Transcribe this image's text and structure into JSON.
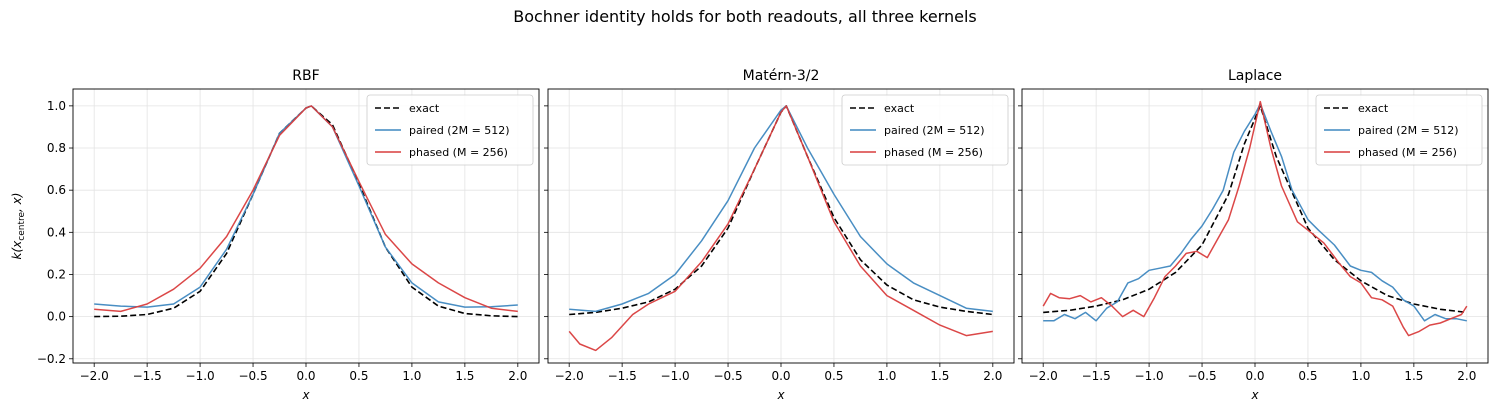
{
  "figure": {
    "title": "Bochner identity holds for both readouts, all three kernels",
    "shared_ylabel": "k(x_centre, x)",
    "colors": {
      "exact": "#000000",
      "paired": "#3f88c0",
      "phased": "#d93d3d"
    }
  },
  "chart_data": [
    {
      "type": "line",
      "title": "RBF",
      "xlabel": "x",
      "ylabel": "k(x_centre, x)",
      "xlim": [
        -2.2,
        2.2
      ],
      "ylim": [
        -0.22,
        1.08
      ],
      "xticks": [
        -2.0,
        -1.5,
        -1.0,
        -0.5,
        0.0,
        0.5,
        1.0,
        1.5,
        2.0
      ],
      "xtick_labels": [
        "−2.0",
        "−1.5",
        "−1.0",
        "−0.5",
        "0.0",
        "0.5",
        "1.0",
        "1.5",
        "2.0"
      ],
      "yticks": [
        -0.2,
        0.0,
        0.2,
        0.4,
        0.6,
        0.8,
        1.0
      ],
      "ytick_labels": [
        "−0.2",
        "0.0",
        "0.2",
        "0.4",
        "0.6",
        "0.8",
        "1.0"
      ],
      "grid": true,
      "legend": "top-right",
      "series": [
        {
          "name": "exact",
          "style": "dashed",
          "points": [
            [
              -2.0,
              0.0
            ],
            [
              -1.75,
              0.002
            ],
            [
              -1.5,
              0.01
            ],
            [
              -1.25,
              0.04
            ],
            [
              -1.0,
              0.12
            ],
            [
              -0.75,
              0.3
            ],
            [
              -0.5,
              0.58
            ],
            [
              -0.25,
              0.87
            ],
            [
              0.0,
              0.99
            ],
            [
              0.05,
              1.0
            ],
            [
              0.25,
              0.91
            ],
            [
              0.5,
              0.63
            ],
            [
              0.75,
              0.33
            ],
            [
              1.0,
              0.14
            ],
            [
              1.25,
              0.05
            ],
            [
              1.5,
              0.015
            ],
            [
              1.75,
              0.004
            ],
            [
              2.0,
              0.0
            ]
          ]
        },
        {
          "name": "paired (2M = 512)",
          "style": "solid",
          "points": [
            [
              -2.0,
              0.06
            ],
            [
              -1.75,
              0.05
            ],
            [
              -1.5,
              0.045
            ],
            [
              -1.25,
              0.06
            ],
            [
              -1.0,
              0.14
            ],
            [
              -0.75,
              0.32
            ],
            [
              -0.5,
              0.58
            ],
            [
              -0.25,
              0.87
            ],
            [
              0.0,
              0.99
            ],
            [
              0.05,
              1.0
            ],
            [
              0.25,
              0.9
            ],
            [
              0.5,
              0.62
            ],
            [
              0.75,
              0.33
            ],
            [
              1.0,
              0.16
            ],
            [
              1.25,
              0.07
            ],
            [
              1.5,
              0.045
            ],
            [
              1.75,
              0.047
            ],
            [
              2.0,
              0.055
            ]
          ]
        },
        {
          "name": "phased (M = 256)",
          "style": "solid",
          "points": [
            [
              -2.0,
              0.035
            ],
            [
              -1.75,
              0.025
            ],
            [
              -1.5,
              0.06
            ],
            [
              -1.25,
              0.13
            ],
            [
              -1.0,
              0.23
            ],
            [
              -0.75,
              0.38
            ],
            [
              -0.5,
              0.6
            ],
            [
              -0.25,
              0.86
            ],
            [
              0.0,
              0.99
            ],
            [
              0.05,
              1.0
            ],
            [
              0.25,
              0.9
            ],
            [
              0.5,
              0.64
            ],
            [
              0.75,
              0.39
            ],
            [
              1.0,
              0.25
            ],
            [
              1.25,
              0.16
            ],
            [
              1.5,
              0.09
            ],
            [
              1.75,
              0.04
            ],
            [
              2.0,
              0.025
            ]
          ]
        }
      ]
    },
    {
      "type": "line",
      "title": "Matérn-3/2",
      "xlabel": "x",
      "ylabel": "",
      "xlim": [
        -2.2,
        2.2
      ],
      "ylim": [
        -0.22,
        1.08
      ],
      "xticks": [
        -2.0,
        -1.5,
        -1.0,
        -0.5,
        0.0,
        0.5,
        1.0,
        1.5,
        2.0
      ],
      "xtick_labels": [
        "−2.0",
        "−1.5",
        "−1.0",
        "−0.5",
        "0.0",
        "0.5",
        "1.0",
        "1.5",
        "2.0"
      ],
      "grid": true,
      "legend": "top-right",
      "series": [
        {
          "name": "exact",
          "style": "dashed",
          "points": [
            [
              -2.0,
              0.01
            ],
            [
              -1.75,
              0.02
            ],
            [
              -1.5,
              0.04
            ],
            [
              -1.25,
              0.07
            ],
            [
              -1.0,
              0.13
            ],
            [
              -0.75,
              0.24
            ],
            [
              -0.5,
              0.42
            ],
            [
              -0.25,
              0.7
            ],
            [
              0.0,
              0.97
            ],
            [
              0.05,
              1.0
            ],
            [
              0.25,
              0.76
            ],
            [
              0.5,
              0.47
            ],
            [
              0.75,
              0.27
            ],
            [
              1.0,
              0.15
            ],
            [
              1.25,
              0.08
            ],
            [
              1.5,
              0.045
            ],
            [
              1.75,
              0.025
            ],
            [
              2.0,
              0.01
            ]
          ]
        },
        {
          "name": "paired (2M = 512)",
          "style": "solid",
          "points": [
            [
              -2.0,
              0.035
            ],
            [
              -1.75,
              0.025
            ],
            [
              -1.5,
              0.06
            ],
            [
              -1.25,
              0.11
            ],
            [
              -1.0,
              0.2
            ],
            [
              -0.75,
              0.36
            ],
            [
              -0.5,
              0.55
            ],
            [
              -0.25,
              0.8
            ],
            [
              0.0,
              0.98
            ],
            [
              0.05,
              1.0
            ],
            [
              0.25,
              0.8
            ],
            [
              0.5,
              0.58
            ],
            [
              0.75,
              0.38
            ],
            [
              1.0,
              0.25
            ],
            [
              1.25,
              0.16
            ],
            [
              1.5,
              0.1
            ],
            [
              1.75,
              0.04
            ],
            [
              2.0,
              0.025
            ]
          ]
        },
        {
          "name": "phased (M = 256)",
          "style": "solid",
          "points": [
            [
              -2.0,
              -0.07
            ],
            [
              -1.9,
              -0.13
            ],
            [
              -1.75,
              -0.16
            ],
            [
              -1.6,
              -0.1
            ],
            [
              -1.4,
              0.01
            ],
            [
              -1.25,
              0.06
            ],
            [
              -1.0,
              0.12
            ],
            [
              -0.75,
              0.26
            ],
            [
              -0.5,
              0.44
            ],
            [
              -0.25,
              0.7
            ],
            [
              0.0,
              0.97
            ],
            [
              0.05,
              1.0
            ],
            [
              0.25,
              0.76
            ],
            [
              0.5,
              0.45
            ],
            [
              0.75,
              0.24
            ],
            [
              1.0,
              0.1
            ],
            [
              1.25,
              0.03
            ],
            [
              1.5,
              -0.04
            ],
            [
              1.75,
              -0.09
            ],
            [
              2.0,
              -0.07
            ]
          ]
        }
      ]
    },
    {
      "type": "line",
      "title": "Laplace",
      "xlabel": "x",
      "ylabel": "",
      "xlim": [
        -2.2,
        2.2
      ],
      "ylim": [
        -0.22,
        1.08
      ],
      "xticks": [
        -2.0,
        -1.5,
        -1.0,
        -0.5,
        0.0,
        0.5,
        1.0,
        1.5,
        2.0
      ],
      "xtick_labels": [
        "−2.0",
        "−1.5",
        "−1.0",
        "−0.5",
        "0.0",
        "0.5",
        "1.0",
        "1.5",
        "2.0"
      ],
      "grid": true,
      "legend": "top-right",
      "series": [
        {
          "name": "exact",
          "style": "dashed",
          "points": [
            [
              -2.0,
              0.02
            ],
            [
              -1.75,
              0.03
            ],
            [
              -1.5,
              0.05
            ],
            [
              -1.25,
              0.08
            ],
            [
              -1.0,
              0.13
            ],
            [
              -0.75,
              0.21
            ],
            [
              -0.5,
              0.34
            ],
            [
              -0.25,
              0.58
            ],
            [
              -0.1,
              0.82
            ],
            [
              0.05,
              1.0
            ],
            [
              0.2,
              0.76
            ],
            [
              0.5,
              0.42
            ],
            [
              0.75,
              0.27
            ],
            [
              1.0,
              0.17
            ],
            [
              1.25,
              0.1
            ],
            [
              1.5,
              0.06
            ],
            [
              1.75,
              0.035
            ],
            [
              2.0,
              0.02
            ]
          ]
        },
        {
          "name": "paired (2M = 512)",
          "style": "solid",
          "points": [
            [
              -2.0,
              -0.02
            ],
            [
              -1.9,
              -0.02
            ],
            [
              -1.8,
              0.01
            ],
            [
              -1.7,
              -0.01
            ],
            [
              -1.6,
              0.02
            ],
            [
              -1.5,
              -0.02
            ],
            [
              -1.4,
              0.04
            ],
            [
              -1.3,
              0.07
            ],
            [
              -1.2,
              0.16
            ],
            [
              -1.1,
              0.18
            ],
            [
              -1.0,
              0.22
            ],
            [
              -0.9,
              0.23
            ],
            [
              -0.8,
              0.24
            ],
            [
              -0.7,
              0.3
            ],
            [
              -0.6,
              0.37
            ],
            [
              -0.5,
              0.43
            ],
            [
              -0.4,
              0.51
            ],
            [
              -0.3,
              0.6
            ],
            [
              -0.2,
              0.78
            ],
            [
              -0.1,
              0.88
            ],
            [
              0.0,
              0.96
            ],
            [
              0.05,
              1.01
            ],
            [
              0.15,
              0.88
            ],
            [
              0.25,
              0.76
            ],
            [
              0.35,
              0.6
            ],
            [
              0.5,
              0.46
            ],
            [
              0.6,
              0.41
            ],
            [
              0.75,
              0.34
            ],
            [
              0.9,
              0.24
            ],
            [
              1.0,
              0.22
            ],
            [
              1.1,
              0.21
            ],
            [
              1.2,
              0.17
            ],
            [
              1.3,
              0.14
            ],
            [
              1.4,
              0.08
            ],
            [
              1.5,
              0.05
            ],
            [
              1.6,
              -0.02
            ],
            [
              1.7,
              0.01
            ],
            [
              1.8,
              -0.01
            ],
            [
              1.9,
              -0.01
            ],
            [
              2.0,
              -0.02
            ]
          ]
        },
        {
          "name": "phased (M = 256)",
          "style": "solid",
          "points": [
            [
              -2.0,
              0.05
            ],
            [
              -1.93,
              0.11
            ],
            [
              -1.85,
              0.09
            ],
            [
              -1.75,
              0.085
            ],
            [
              -1.65,
              0.1
            ],
            [
              -1.55,
              0.07
            ],
            [
              -1.45,
              0.09
            ],
            [
              -1.35,
              0.05
            ],
            [
              -1.25,
              0.0
            ],
            [
              -1.15,
              0.03
            ],
            [
              -1.05,
              0.0
            ],
            [
              -0.95,
              0.09
            ],
            [
              -0.85,
              0.19
            ],
            [
              -0.75,
              0.24
            ],
            [
              -0.65,
              0.3
            ],
            [
              -0.55,
              0.31
            ],
            [
              -0.45,
              0.28
            ],
            [
              -0.35,
              0.37
            ],
            [
              -0.25,
              0.46
            ],
            [
              -0.15,
              0.62
            ],
            [
              -0.05,
              0.8
            ],
            [
              0.05,
              1.02
            ],
            [
              0.15,
              0.8
            ],
            [
              0.25,
              0.62
            ],
            [
              0.4,
              0.45
            ],
            [
              0.5,
              0.41
            ],
            [
              0.65,
              0.35
            ],
            [
              0.8,
              0.25
            ],
            [
              0.9,
              0.19
            ],
            [
              1.0,
              0.16
            ],
            [
              1.1,
              0.09
            ],
            [
              1.2,
              0.08
            ],
            [
              1.3,
              0.05
            ],
            [
              1.4,
              -0.05
            ],
            [
              1.45,
              -0.09
            ],
            [
              1.55,
              -0.07
            ],
            [
              1.65,
              -0.04
            ],
            [
              1.75,
              -0.03
            ],
            [
              1.85,
              -0.01
            ],
            [
              1.95,
              0.01
            ],
            [
              2.0,
              0.05
            ]
          ]
        }
      ]
    }
  ]
}
